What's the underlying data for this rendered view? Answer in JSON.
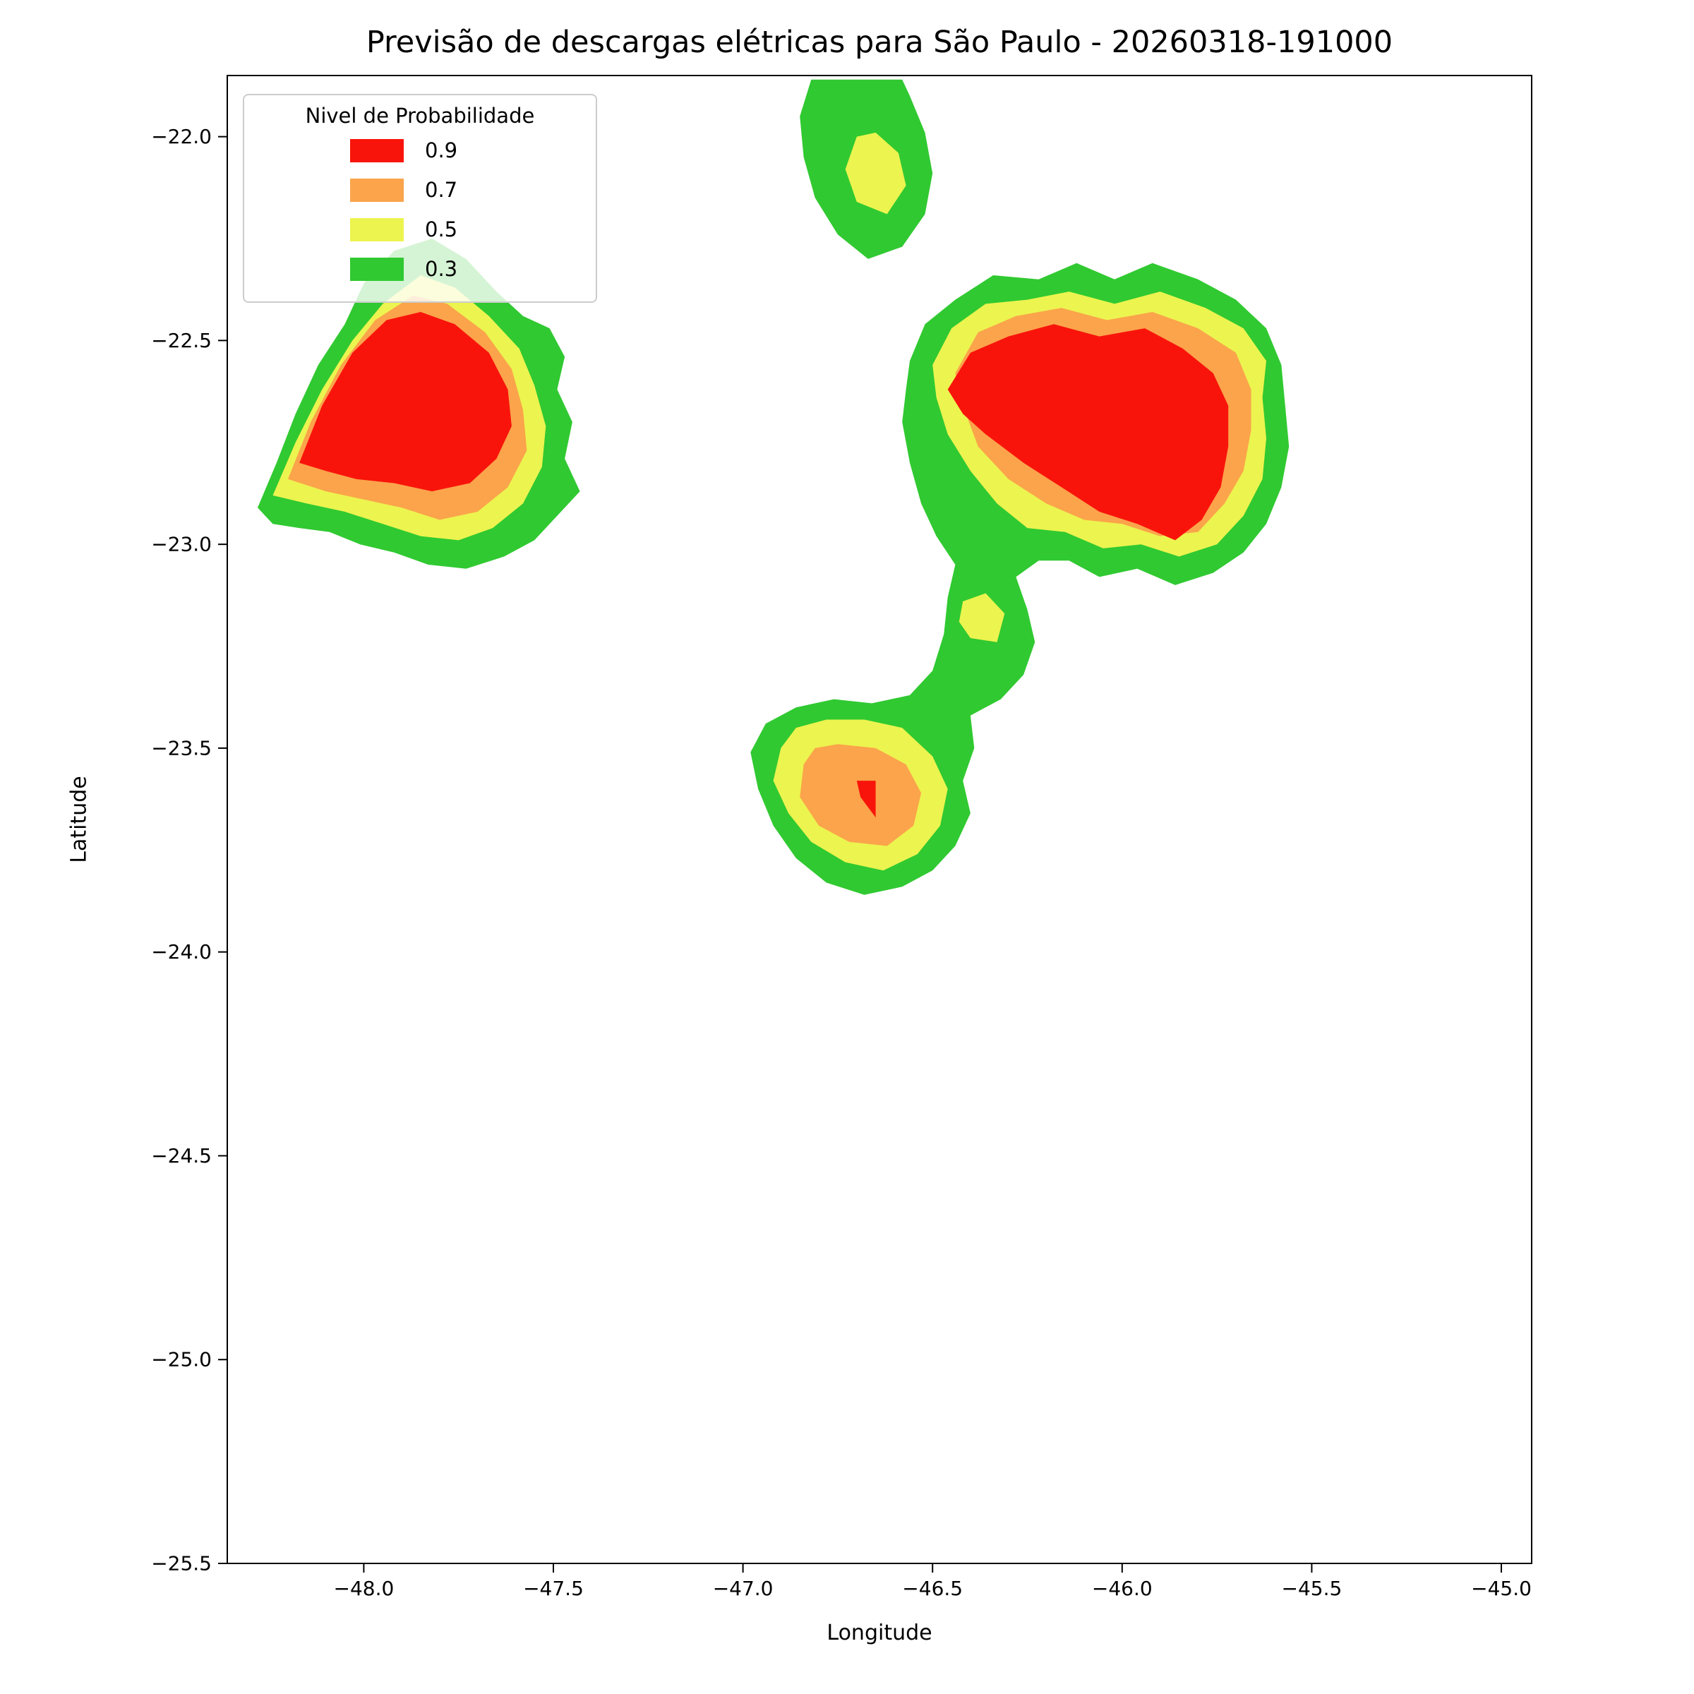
{
  "legend": {
    "title": "Nivel de Probabilidade",
    "position": "upper left",
    "entries": [
      {
        "label": "0.9",
        "color": "#f9140b"
      },
      {
        "label": "0.7",
        "color": "#fba44b"
      },
      {
        "label": "0.5",
        "color": "#ecf44f"
      },
      {
        "label": "0.3",
        "color": "#30c931"
      }
    ]
  },
  "chart_data": {
    "type": "filled-contour",
    "title": "Previsão de descargas elétricas para São Paulo - 20260318-191000",
    "xlabel": "Longitude",
    "ylabel": "Latitude",
    "xlim": [
      -48.36,
      -44.92
    ],
    "ylim": [
      -25.5,
      -21.85
    ],
    "grid": false,
    "background": "#ffffff",
    "xticks": [
      {
        "value": -48.0,
        "label": "−48.0"
      },
      {
        "value": -47.5,
        "label": "−47.5"
      },
      {
        "value": -47.0,
        "label": "−47.0"
      },
      {
        "value": -46.5,
        "label": "−46.5"
      },
      {
        "value": -46.0,
        "label": "−46.0"
      },
      {
        "value": -45.5,
        "label": "−45.5"
      },
      {
        "value": -45.0,
        "label": "−45.0"
      }
    ],
    "yticks": [
      {
        "value": -22.0,
        "label": "−22.0"
      },
      {
        "value": -22.5,
        "label": "−22.5"
      },
      {
        "value": -23.0,
        "label": "−23.0"
      },
      {
        "value": -23.5,
        "label": "−23.5"
      },
      {
        "value": -24.0,
        "label": "−24.0"
      },
      {
        "value": -24.5,
        "label": "−24.5"
      },
      {
        "value": -25.0,
        "label": "−25.0"
      },
      {
        "value": -25.5,
        "label": "−25.5"
      }
    ],
    "levels": [
      {
        "probability": 0.3,
        "color": "#30c931"
      },
      {
        "probability": 0.5,
        "color": "#ecf44f"
      },
      {
        "probability": 0.7,
        "color": "#fba44b"
      },
      {
        "probability": 0.9,
        "color": "#f9140b"
      }
    ],
    "regions": [
      {
        "name": "northwest-cell-p03",
        "level": 0.3,
        "points": [
          [
            -48.28,
            -22.91
          ],
          [
            -48.23,
            -22.8
          ],
          [
            -48.18,
            -22.68
          ],
          [
            -48.12,
            -22.56
          ],
          [
            -48.05,
            -22.46
          ],
          [
            -48.0,
            -22.36
          ],
          [
            -47.92,
            -22.28
          ],
          [
            -47.82,
            -22.25
          ],
          [
            -47.73,
            -22.3
          ],
          [
            -47.65,
            -22.38
          ],
          [
            -47.58,
            -22.44
          ],
          [
            -47.51,
            -22.47
          ],
          [
            -47.47,
            -22.54
          ],
          [
            -47.49,
            -22.62
          ],
          [
            -47.45,
            -22.7
          ],
          [
            -47.47,
            -22.79
          ],
          [
            -47.43,
            -22.87
          ],
          [
            -47.49,
            -22.93
          ],
          [
            -47.55,
            -22.99
          ],
          [
            -47.63,
            -23.03
          ],
          [
            -47.73,
            -23.06
          ],
          [
            -47.83,
            -23.05
          ],
          [
            -47.92,
            -23.02
          ],
          [
            -48.01,
            -23.0
          ],
          [
            -48.09,
            -22.97
          ],
          [
            -48.17,
            -22.96
          ],
          [
            -48.24,
            -22.95
          ]
        ]
      },
      {
        "name": "north-cell-p03",
        "level": 0.3,
        "points": [
          [
            -46.82,
            -21.86
          ],
          [
            -46.85,
            -21.95
          ],
          [
            -46.84,
            -22.05
          ],
          [
            -46.81,
            -22.15
          ],
          [
            -46.75,
            -22.24
          ],
          [
            -46.67,
            -22.3
          ],
          [
            -46.58,
            -22.27
          ],
          [
            -46.52,
            -22.19
          ],
          [
            -46.5,
            -22.09
          ],
          [
            -46.52,
            -21.99
          ],
          [
            -46.56,
            -21.9
          ],
          [
            -46.58,
            -21.86
          ]
        ]
      },
      {
        "name": "east-and-south-cell-p03",
        "level": 0.3,
        "points": [
          [
            -46.56,
            -22.55
          ],
          [
            -46.52,
            -22.46
          ],
          [
            -46.44,
            -22.4
          ],
          [
            -46.34,
            -22.34
          ],
          [
            -46.22,
            -22.35
          ],
          [
            -46.12,
            -22.31
          ],
          [
            -46.02,
            -22.35
          ],
          [
            -45.92,
            -22.31
          ],
          [
            -45.8,
            -22.35
          ],
          [
            -45.7,
            -22.4
          ],
          [
            -45.62,
            -22.47
          ],
          [
            -45.58,
            -22.56
          ],
          [
            -45.57,
            -22.66
          ],
          [
            -45.56,
            -22.76
          ],
          [
            -45.58,
            -22.86
          ],
          [
            -45.62,
            -22.95
          ],
          [
            -45.68,
            -23.02
          ],
          [
            -45.76,
            -23.07
          ],
          [
            -45.86,
            -23.1
          ],
          [
            -45.96,
            -23.06
          ],
          [
            -46.06,
            -23.08
          ],
          [
            -46.14,
            -23.04
          ],
          [
            -46.22,
            -23.04
          ],
          [
            -46.28,
            -23.08
          ],
          [
            -46.25,
            -23.16
          ],
          [
            -46.23,
            -23.24
          ],
          [
            -46.26,
            -23.32
          ],
          [
            -46.32,
            -23.38
          ],
          [
            -46.4,
            -23.42
          ],
          [
            -46.39,
            -23.5
          ],
          [
            -46.42,
            -23.58
          ],
          [
            -46.4,
            -23.66
          ],
          [
            -46.44,
            -23.74
          ],
          [
            -46.5,
            -23.8
          ],
          [
            -46.58,
            -23.84
          ],
          [
            -46.68,
            -23.86
          ],
          [
            -46.78,
            -23.83
          ],
          [
            -46.86,
            -23.77
          ],
          [
            -46.92,
            -23.69
          ],
          [
            -46.96,
            -23.6
          ],
          [
            -46.98,
            -23.51
          ],
          [
            -46.94,
            -23.44
          ],
          [
            -46.86,
            -23.4
          ],
          [
            -46.76,
            -23.38
          ],
          [
            -46.66,
            -23.39
          ],
          [
            -46.56,
            -23.37
          ],
          [
            -46.5,
            -23.31
          ],
          [
            -46.47,
            -23.22
          ],
          [
            -46.46,
            -23.13
          ],
          [
            -46.44,
            -23.05
          ],
          [
            -46.49,
            -22.98
          ],
          [
            -46.53,
            -22.9
          ],
          [
            -46.56,
            -22.8
          ],
          [
            -46.58,
            -22.7
          ],
          [
            -46.57,
            -22.62
          ]
        ]
      },
      {
        "name": "northwest-cell-p05",
        "level": 0.5,
        "points": [
          [
            -48.24,
            -22.88
          ],
          [
            -48.18,
            -22.75
          ],
          [
            -48.11,
            -22.62
          ],
          [
            -48.03,
            -22.5
          ],
          [
            -47.95,
            -22.41
          ],
          [
            -47.85,
            -22.34
          ],
          [
            -47.76,
            -22.37
          ],
          [
            -47.67,
            -22.44
          ],
          [
            -47.59,
            -22.52
          ],
          [
            -47.55,
            -22.61
          ],
          [
            -47.52,
            -22.71
          ],
          [
            -47.53,
            -22.81
          ],
          [
            -47.58,
            -22.9
          ],
          [
            -47.66,
            -22.96
          ],
          [
            -47.75,
            -22.99
          ],
          [
            -47.85,
            -22.98
          ],
          [
            -47.95,
            -22.95
          ],
          [
            -48.05,
            -22.92
          ],
          [
            -48.15,
            -22.9
          ]
        ]
      },
      {
        "name": "north-cell-p05",
        "level": 0.5,
        "points": [
          [
            -46.7,
            -22.0
          ],
          [
            -46.73,
            -22.08
          ],
          [
            -46.7,
            -22.16
          ],
          [
            -46.62,
            -22.19
          ],
          [
            -46.57,
            -22.12
          ],
          [
            -46.59,
            -22.04
          ],
          [
            -46.65,
            -21.99
          ]
        ]
      },
      {
        "name": "east-cell-p05",
        "level": 0.5,
        "points": [
          [
            -46.5,
            -22.56
          ],
          [
            -46.45,
            -22.47
          ],
          [
            -46.36,
            -22.41
          ],
          [
            -46.25,
            -22.4
          ],
          [
            -46.14,
            -22.38
          ],
          [
            -46.02,
            -22.41
          ],
          [
            -45.9,
            -22.38
          ],
          [
            -45.78,
            -22.42
          ],
          [
            -45.68,
            -22.47
          ],
          [
            -45.62,
            -22.55
          ],
          [
            -45.63,
            -22.64
          ],
          [
            -45.62,
            -22.74
          ],
          [
            -45.63,
            -22.84
          ],
          [
            -45.68,
            -22.93
          ],
          [
            -45.75,
            -23.0
          ],
          [
            -45.85,
            -23.03
          ],
          [
            -45.95,
            -23.0
          ],
          [
            -46.05,
            -23.01
          ],
          [
            -46.15,
            -22.97
          ],
          [
            -46.25,
            -22.96
          ],
          [
            -46.33,
            -22.9
          ],
          [
            -46.4,
            -22.82
          ],
          [
            -46.46,
            -22.73
          ],
          [
            -46.49,
            -22.64
          ]
        ]
      },
      {
        "name": "corridor-spot-p05",
        "level": 0.5,
        "points": [
          [
            -46.42,
            -23.14
          ],
          [
            -46.36,
            -23.12
          ],
          [
            -46.31,
            -23.17
          ],
          [
            -46.33,
            -23.24
          ],
          [
            -46.4,
            -23.23
          ],
          [
            -46.43,
            -23.19
          ]
        ]
      },
      {
        "name": "south-cell-p05",
        "level": 0.5,
        "points": [
          [
            -46.9,
            -23.5
          ],
          [
            -46.92,
            -23.58
          ],
          [
            -46.88,
            -23.66
          ],
          [
            -46.82,
            -23.73
          ],
          [
            -46.73,
            -23.78
          ],
          [
            -46.63,
            -23.8
          ],
          [
            -46.54,
            -23.76
          ],
          [
            -46.48,
            -23.69
          ],
          [
            -46.46,
            -23.6
          ],
          [
            -46.5,
            -23.52
          ],
          [
            -46.58,
            -23.45
          ],
          [
            -46.68,
            -23.43
          ],
          [
            -46.78,
            -23.43
          ],
          [
            -46.86,
            -23.45
          ]
        ]
      },
      {
        "name": "northwest-cell-p07",
        "level": 0.7,
        "points": [
          [
            -48.2,
            -22.84
          ],
          [
            -48.14,
            -22.7
          ],
          [
            -48.06,
            -22.56
          ],
          [
            -47.97,
            -22.45
          ],
          [
            -47.87,
            -22.39
          ],
          [
            -47.78,
            -22.41
          ],
          [
            -47.68,
            -22.48
          ],
          [
            -47.61,
            -22.57
          ],
          [
            -47.58,
            -22.67
          ],
          [
            -47.57,
            -22.77
          ],
          [
            -47.62,
            -22.86
          ],
          [
            -47.7,
            -22.92
          ],
          [
            -47.8,
            -22.94
          ],
          [
            -47.9,
            -22.91
          ],
          [
            -48.0,
            -22.89
          ],
          [
            -48.1,
            -22.87
          ]
        ]
      },
      {
        "name": "east-cell-p07",
        "level": 0.7,
        "points": [
          [
            -46.44,
            -22.58
          ],
          [
            -46.38,
            -22.48
          ],
          [
            -46.28,
            -22.44
          ],
          [
            -46.16,
            -22.42
          ],
          [
            -46.04,
            -22.45
          ],
          [
            -45.92,
            -22.43
          ],
          [
            -45.8,
            -22.47
          ],
          [
            -45.7,
            -22.53
          ],
          [
            -45.66,
            -22.62
          ],
          [
            -45.66,
            -22.72
          ],
          [
            -45.68,
            -22.82
          ],
          [
            -45.73,
            -22.9
          ],
          [
            -45.8,
            -22.97
          ],
          [
            -45.9,
            -22.98
          ],
          [
            -46.0,
            -22.95
          ],
          [
            -46.1,
            -22.94
          ],
          [
            -46.2,
            -22.9
          ],
          [
            -46.3,
            -22.84
          ],
          [
            -46.38,
            -22.76
          ],
          [
            -46.42,
            -22.66
          ]
        ]
      },
      {
        "name": "south-cell-p07",
        "level": 0.7,
        "points": [
          [
            -46.84,
            -23.54
          ],
          [
            -46.85,
            -23.62
          ],
          [
            -46.8,
            -23.69
          ],
          [
            -46.72,
            -23.73
          ],
          [
            -46.62,
            -23.74
          ],
          [
            -46.55,
            -23.69
          ],
          [
            -46.53,
            -23.61
          ],
          [
            -46.57,
            -23.54
          ],
          [
            -46.65,
            -23.5
          ],
          [
            -46.75,
            -23.49
          ],
          [
            -46.81,
            -23.5
          ]
        ]
      },
      {
        "name": "northwest-cell-p09",
        "level": 0.9,
        "points": [
          [
            -48.17,
            -22.8
          ],
          [
            -48.11,
            -22.66
          ],
          [
            -48.03,
            -22.53
          ],
          [
            -47.94,
            -22.45
          ],
          [
            -47.85,
            -22.43
          ],
          [
            -47.76,
            -22.46
          ],
          [
            -47.67,
            -22.53
          ],
          [
            -47.62,
            -22.62
          ],
          [
            -47.61,
            -22.71
          ],
          [
            -47.65,
            -22.79
          ],
          [
            -47.72,
            -22.85
          ],
          [
            -47.82,
            -22.87
          ],
          [
            -47.92,
            -22.85
          ],
          [
            -48.02,
            -22.84
          ],
          [
            -48.1,
            -22.82
          ]
        ]
      },
      {
        "name": "east-cell-p09",
        "level": 0.9,
        "points": [
          [
            -46.46,
            -22.62
          ],
          [
            -46.4,
            -22.53
          ],
          [
            -46.3,
            -22.49
          ],
          [
            -46.18,
            -22.46
          ],
          [
            -46.06,
            -22.49
          ],
          [
            -45.94,
            -22.47
          ],
          [
            -45.84,
            -22.52
          ],
          [
            -45.76,
            -22.58
          ],
          [
            -45.72,
            -22.66
          ],
          [
            -45.72,
            -22.76
          ],
          [
            -45.74,
            -22.86
          ],
          [
            -45.79,
            -22.94
          ],
          [
            -45.86,
            -22.99
          ],
          [
            -45.96,
            -22.95
          ],
          [
            -46.06,
            -22.92
          ],
          [
            -46.16,
            -22.86
          ],
          [
            -46.26,
            -22.8
          ],
          [
            -46.36,
            -22.73
          ],
          [
            -46.42,
            -22.68
          ]
        ]
      },
      {
        "name": "south-cell-p09",
        "level": 0.9,
        "points": [
          [
            -46.7,
            -23.58
          ],
          [
            -46.65,
            -23.58
          ],
          [
            -46.65,
            -23.67
          ],
          [
            -46.69,
            -23.62
          ]
        ]
      }
    ]
  }
}
